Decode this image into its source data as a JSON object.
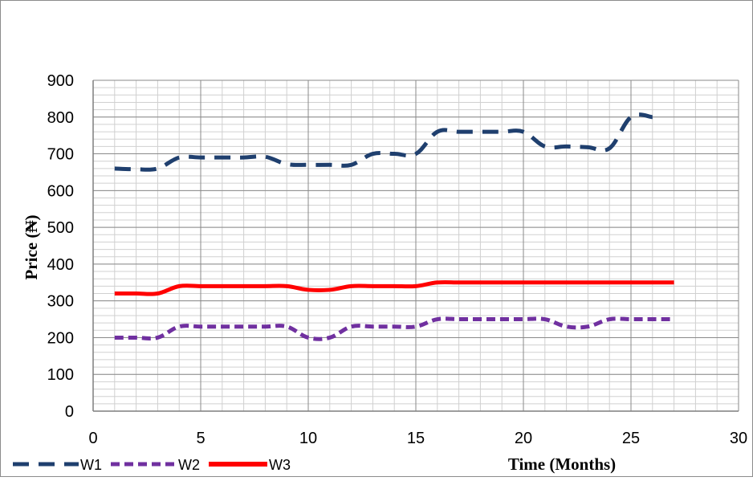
{
  "chart_data": {
    "type": "line",
    "title": "",
    "xlabel": "Time (Months)",
    "ylabel": "Price (₦)",
    "xlim": [
      0,
      30
    ],
    "ylim": [
      0,
      900
    ],
    "x_ticks": [
      0,
      5,
      10,
      15,
      20,
      25,
      30
    ],
    "y_ticks": [
      0,
      100,
      200,
      300,
      400,
      500,
      600,
      700,
      800,
      900
    ],
    "grid": true,
    "legend_position": "bottom-left",
    "series": [
      {
        "name": "W1",
        "color": "#1f3f6e",
        "line_style": "long-dash",
        "x": [
          1,
          2,
          3,
          4,
          5,
          6,
          7,
          8,
          9,
          10,
          11,
          12,
          13,
          14,
          15,
          16,
          17,
          18,
          19,
          20,
          21,
          22,
          23,
          24,
          25,
          26
        ],
        "y": [
          660,
          658,
          660,
          690,
          690,
          690,
          690,
          692,
          672,
          670,
          670,
          670,
          700,
          700,
          700,
          760,
          760,
          760,
          760,
          760,
          720,
          720,
          718,
          715,
          800,
          800
        ]
      },
      {
        "name": "W2",
        "color": "#7030a0",
        "line_style": "dash",
        "x": [
          1,
          2,
          3,
          4,
          5,
          6,
          7,
          8,
          9,
          10,
          11,
          12,
          13,
          14,
          15,
          16,
          17,
          18,
          19,
          20,
          21,
          22,
          23,
          24,
          25,
          26,
          27
        ],
        "y": [
          200,
          200,
          200,
          230,
          230,
          230,
          230,
          230,
          230,
          200,
          200,
          230,
          230,
          230,
          230,
          250,
          250,
          250,
          250,
          250,
          250,
          230,
          230,
          250,
          250,
          250,
          250
        ]
      },
      {
        "name": "W3",
        "color": "#ff0000",
        "line_style": "solid",
        "x": [
          1,
          2,
          3,
          4,
          5,
          6,
          7,
          8,
          9,
          10,
          11,
          12,
          13,
          14,
          15,
          16,
          17,
          18,
          19,
          20,
          21,
          22,
          23,
          24,
          25,
          26,
          27
        ],
        "y": [
          320,
          320,
          320,
          340,
          340,
          340,
          340,
          340,
          340,
          330,
          330,
          340,
          340,
          340,
          340,
          350,
          350,
          350,
          350,
          350,
          350,
          350,
          350,
          350,
          350,
          350,
          350
        ]
      }
    ]
  }
}
